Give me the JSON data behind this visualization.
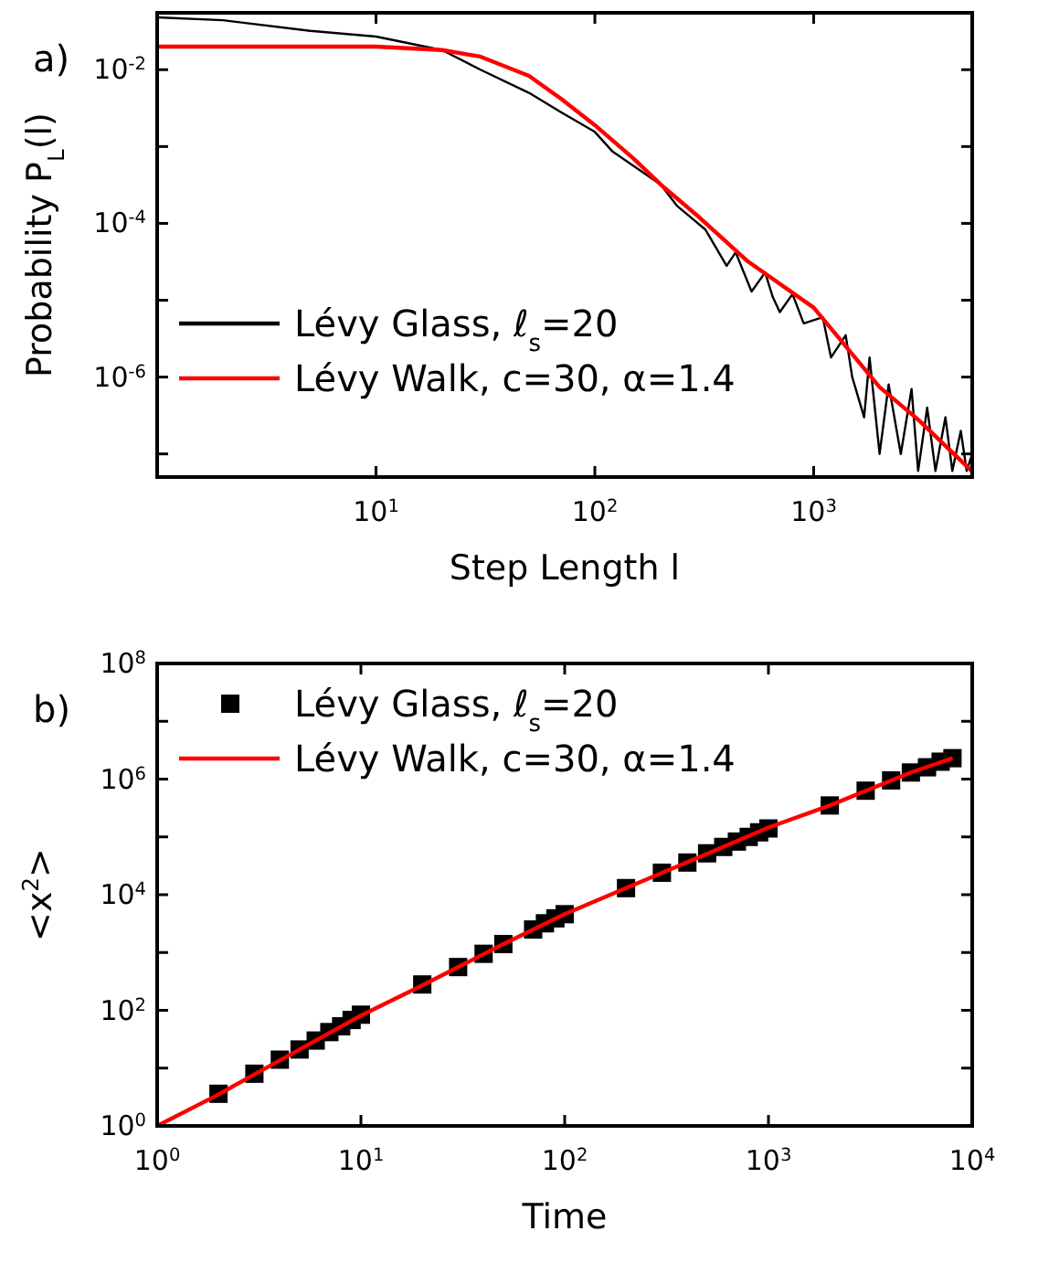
{
  "chart_data": [
    {
      "type": "line",
      "title": "a)",
      "xlabel": "Step Length l",
      "ylabel": "Probability P$_{L}$(l)",
      "log": "xy",
      "legend": "bottom left",
      "grid": false,
      "xlim": [
        1,
        5300
      ],
      "xticks": [
        {
          "value": 10,
          "label": "10$^{1}$"
        },
        {
          "value": 100,
          "label": "10$^{2}$"
        },
        {
          "value": 1000,
          "label": "10$^{3}$"
        }
      ],
      "ylim": [
        5e-08,
        0.055
      ],
      "yticks": [
        {
          "value": 1e-07,
          "label": null
        },
        {
          "value": 1e-06,
          "label": "10$^{-6}$"
        },
        {
          "value": 1e-05,
          "label": null
        },
        {
          "value": 0.0001,
          "label": "10$^{-4}$"
        },
        {
          "value": 0.001,
          "label": null
        },
        {
          "value": 0.01,
          "label": "10$^{-2}$"
        }
      ],
      "series": [
        {
          "name": "Lévy Glass, ℓ$_{s}$=20",
          "color": "#000000",
          "x": [
            1,
            2,
            5,
            10,
            20,
            30,
            50,
            70,
            100,
            120,
            200,
            237,
            320,
            400,
            440,
            520,
            600,
            650,
            700,
            800,
            900,
            1100,
            1200,
            1400,
            1500,
            1700,
            1800,
            2000,
            2200,
            2500,
            2800,
            3000,
            3300,
            3600,
            4000,
            4300,
            4700,
            5000,
            5300
          ],
          "values": [
            0.048,
            0.044,
            0.032,
            0.027,
            0.018,
            0.01,
            0.005,
            0.0028,
            0.00155,
            0.00087,
            0.00032,
            0.00017,
            8.3e-05,
            2.8e-05,
            4.2e-05,
            1.3e-05,
            2.3e-05,
            1.1e-05,
            7e-06,
            1.2e-05,
            5e-06,
            6e-06,
            1.8e-06,
            3.5e-06,
            1e-06,
            3e-07,
            1.8e-06,
            1e-07,
            8e-07,
            1e-07,
            7e-07,
            6e-08,
            4e-07,
            6e-08,
            3e-07,
            6e-08,
            2e-07,
            6e-08,
            1e-07
          ]
        },
        {
          "name": "Lévy Walk, c=30, α=1.4",
          "color": "#ff0000",
          "x": [
            1,
            10,
            20,
            30,
            50,
            70,
            100,
            150,
            200,
            300,
            500,
            1000,
            2000,
            3000,
            5300
          ],
          "values": [
            0.02,
            0.02,
            0.018,
            0.0148,
            0.0083,
            0.0042,
            0.0019,
            0.0007,
            0.00032,
            0.00012,
            3.2e-05,
            8e-06,
            7.4e-07,
            2.8e-07,
            5.9e-08
          ]
        }
      ]
    },
    {
      "type": "line",
      "title": "b)",
      "xlabel": "Time",
      "ylabel": "<x$^{2}$>",
      "log": "xy",
      "legend": "top left",
      "grid": false,
      "xlim": [
        1,
        10000
      ],
      "xticks": [
        {
          "value": 1,
          "label": "10$^{0}$"
        },
        {
          "value": 10,
          "label": "10$^{1}$"
        },
        {
          "value": 100,
          "label": "10$^{2}$"
        },
        {
          "value": 1000,
          "label": "10$^{3}$"
        },
        {
          "value": 10000,
          "label": "10$^{4}$"
        }
      ],
      "ylim": [
        1,
        100000000.0
      ],
      "yticks": [
        {
          "value": 1,
          "label": "10$^{0}$"
        },
        {
          "value": 10,
          "label": null
        },
        {
          "value": 100,
          "label": "10$^{2}$"
        },
        {
          "value": 1000,
          "label": null
        },
        {
          "value": 10000,
          "label": "10$^{4}$"
        },
        {
          "value": 100000,
          "label": null
        },
        {
          "value": 1000000,
          "label": "10$^{6}$"
        },
        {
          "value": 10000000,
          "label": null
        },
        {
          "value": 100000000,
          "label": "10$^{8}$"
        }
      ],
      "series": [
        {
          "name": "Lévy Glass, ℓ$_{s}$=20",
          "type": "scatter",
          "marker": "square",
          "color": "#000000",
          "x": [
            2,
            3,
            4,
            5,
            6,
            7,
            8,
            9,
            10,
            20,
            30,
            40,
            50,
            70,
            80,
            90,
            100,
            200,
            300,
            400,
            500,
            600,
            700,
            800,
            900,
            1000,
            2000,
            3000,
            4000,
            5000,
            6000,
            7000,
            8000
          ],
          "values": [
            3.6,
            8,
            14,
            21,
            30,
            42,
            53,
            68,
            84,
            280,
            560,
            950,
            1400,
            2500,
            3200,
            3900,
            4600,
            13000,
            24000,
            36000,
            52000,
            67000,
            83000,
            100000,
            120000,
            140000,
            350000,
            630000,
            950000,
            1300000,
            1600000,
            2000000,
            2300000
          ]
        },
        {
          "name": "Lévy Walk, c=30, α=1.4",
          "type": "line",
          "color": "#ff0000",
          "x": [
            1,
            2,
            3,
            5,
            10,
            20,
            50,
            100,
            200,
            500,
            1000,
            2000,
            5000,
            8000
          ],
          "values": [
            1,
            3.5,
            7.8,
            21,
            81,
            270,
            1400,
            4600,
            13000,
            51000,
            145000,
            350000,
            1300000,
            2300000
          ]
        }
      ]
    }
  ]
}
